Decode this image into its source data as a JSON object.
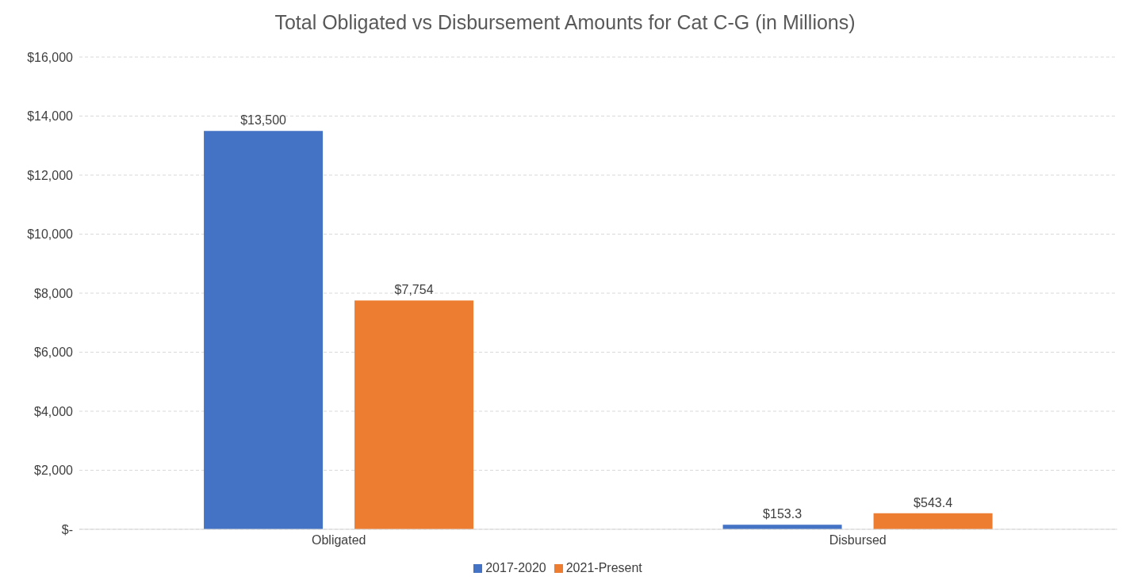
{
  "chart_data": {
    "type": "bar",
    "title": "Total Obligated vs Disbursement Amounts for Cat C-G (in Millions)",
    "categories": [
      "Obligated",
      "Disbursed"
    ],
    "series": [
      {
        "name": "2017-2020",
        "color": "#4472c4",
        "values": [
          13500,
          153.3
        ],
        "value_labels": [
          "$13,500",
          "$153.3"
        ]
      },
      {
        "name": "2021-Present",
        "color": "#ed7d31",
        "values": [
          7754,
          543.4
        ],
        "value_labels": [
          "$7,754",
          "$543.4"
        ]
      }
    ],
    "ylim": [
      0,
      16000
    ],
    "yticks": [
      {
        "value": 0,
        "label": "$-"
      },
      {
        "value": 2000,
        "label": "$2,000"
      },
      {
        "value": 4000,
        "label": "$4,000"
      },
      {
        "value": 6000,
        "label": "$6,000"
      },
      {
        "value": 8000,
        "label": "$8,000"
      },
      {
        "value": 10000,
        "label": "$10,000"
      },
      {
        "value": 12000,
        "label": "$12,000"
      },
      {
        "value": 14000,
        "label": "$14,000"
      },
      {
        "value": 16000,
        "label": "$16,000"
      }
    ],
    "grid": "y",
    "legend": "bottom"
  }
}
